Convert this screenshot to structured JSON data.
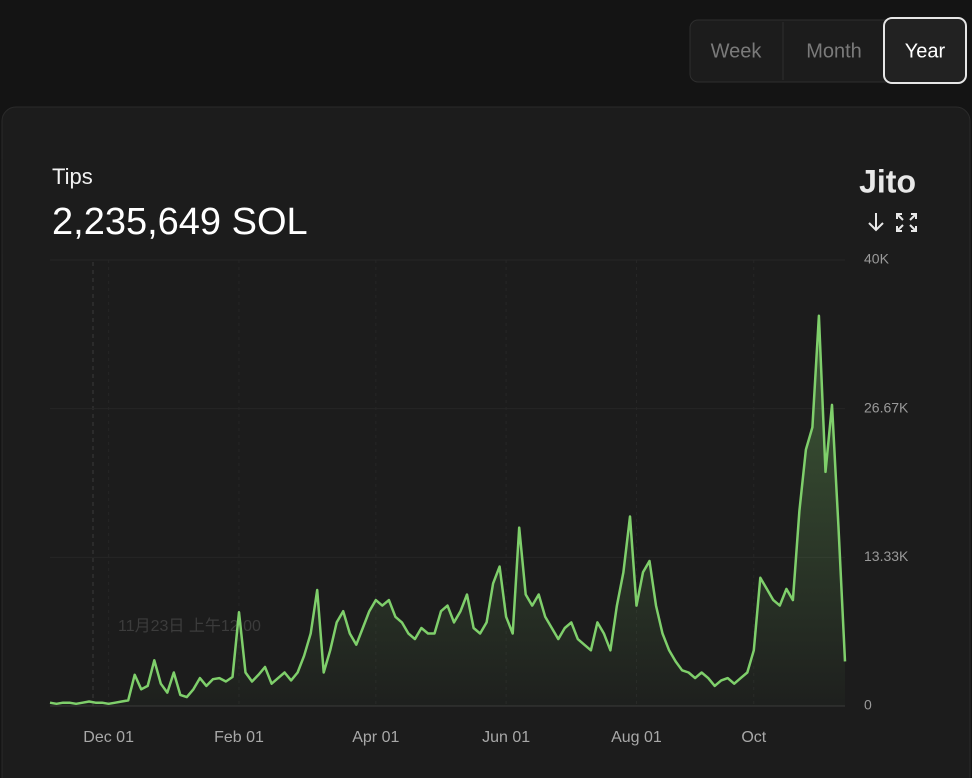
{
  "range_buttons": [
    "Week",
    "Month",
    "Year"
  ],
  "selected_range": 2,
  "brand": "Jito",
  "tooltip": {
    "date": "11月23日 上午12:00"
  },
  "chart_data": {
    "type": "line",
    "title": "Tips",
    "subtitle": "2,235,649 SOL",
    "color": "#7fcf6b",
    "grid": true,
    "area": true,
    "categories": [
      null,
      null,
      null,
      null,
      null,
      null,
      null,
      null,
      null,
      "Dec 01",
      null,
      null,
      null,
      null,
      null,
      null,
      null,
      null,
      null,
      null,
      null,
      null,
      null,
      null,
      null,
      null,
      null,
      null,
      null,
      "Feb 01",
      null,
      null,
      null,
      null,
      null,
      null,
      null,
      null,
      null,
      null,
      null,
      null,
      null,
      null,
      null,
      null,
      null,
      null,
      null,
      null,
      "Apr 01",
      null,
      null,
      null,
      null,
      null,
      null,
      null,
      null,
      null,
      null,
      null,
      null,
      null,
      null,
      null,
      null,
      null,
      null,
      null,
      "Jun 01",
      null,
      null,
      null,
      null,
      null,
      null,
      null,
      null,
      null,
      null,
      null,
      null,
      null,
      null,
      null,
      null,
      null,
      null,
      null,
      "Aug 01",
      null,
      null,
      null,
      null,
      null,
      null,
      null,
      null,
      null,
      null,
      null,
      null,
      null,
      null,
      null,
      null,
      null,
      "Oct",
      null,
      null,
      null,
      null,
      null,
      null,
      null,
      null,
      null,
      null,
      null,
      null,
      null,
      null
    ],
    "values": [
      300,
      200,
      300,
      300,
      200,
      300,
      400,
      300,
      300,
      200,
      300,
      400,
      500,
      2800,
      1500,
      1800,
      4100,
      2000,
      1200,
      3000,
      1000,
      800,
      1500,
      2500,
      1800,
      2400,
      2500,
      2200,
      2600,
      8400,
      3000,
      2200,
      2800,
      3500,
      2000,
      2500,
      3000,
      2300,
      3000,
      4500,
      6500,
      10400,
      3000,
      5000,
      7500,
      8500,
      6500,
      5500,
      7000,
      8500,
      9500,
      9000,
      9500,
      8000,
      7500,
      6500,
      6000,
      7000,
      6500,
      6500,
      8500,
      9000,
      7500,
      8500,
      10000,
      7000,
      6500,
      7500,
      11000,
      12500,
      8000,
      6500,
      16000,
      10000,
      9000,
      10000,
      8000,
      7000,
      6000,
      7000,
      7500,
      6000,
      5500,
      5000,
      7500,
      6500,
      5000,
      9000,
      12000,
      17000,
      9000,
      12000,
      13000,
      9000,
      6500,
      5000,
      4000,
      3200,
      3000,
      2500,
      3000,
      2500,
      1800,
      2300,
      2500,
      2000,
      2500,
      3000,
      5000,
      11500,
      10500,
      9500,
      9000,
      10500,
      9500,
      17500,
      23000,
      25000,
      35000,
      21000,
      27000,
      16000,
      4000
    ],
    "ylim": [
      0,
      40000
    ],
    "yticks": [
      0,
      {
        "value": 13330,
        "label": "13.33K"
      },
      {
        "value": 26670,
        "label": "26.67K"
      },
      {
        "value": 40000,
        "label": "40K"
      }
    ]
  }
}
